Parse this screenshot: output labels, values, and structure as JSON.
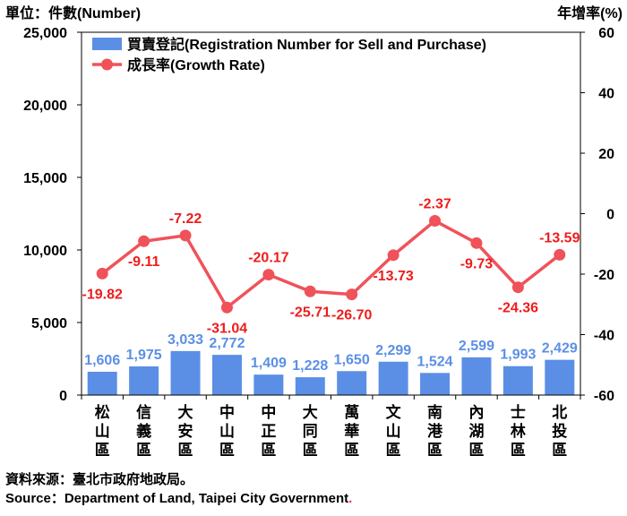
{
  "chart_data": {
    "type": "bar",
    "y_left_label": "單位：件數(Number)",
    "y_right_label": "年增率(%)",
    "ylim_left": [
      0,
      25000
    ],
    "ylim_right": [
      -60,
      60
    ],
    "left_ticks": [
      "25,000",
      "20,000",
      "15,000",
      "10,000",
      "5,000",
      "0"
    ],
    "left_tick_values": [
      25000,
      20000,
      15000,
      10000,
      5000,
      0
    ],
    "right_ticks": [
      "60",
      "40",
      "20",
      "0",
      "-20",
      "-40",
      "-60"
    ],
    "right_tick_values": [
      60,
      40,
      20,
      0,
      -20,
      -40,
      -60
    ],
    "categories": [
      "松山區",
      "信義區",
      "大安區",
      "中山區",
      "中正區",
      "大同區",
      "萬華區",
      "文山區",
      "南港區",
      "內湖區",
      "士林區",
      "北投區"
    ],
    "series": [
      {
        "name": "買賣登記(Registration Number for Sell and Purchase)",
        "kind": "bar",
        "axis": "left",
        "color": "#5b8fe6",
        "values": [
          1606,
          1975,
          3033,
          2772,
          1409,
          1228,
          1650,
          2299,
          1524,
          2599,
          1993,
          2429
        ],
        "labels": [
          "1,606",
          "1,975",
          "3,033",
          "2,772",
          "1,409",
          "1,228",
          "1,650",
          "2,299",
          "1,524",
          "2,599",
          "1,993",
          "2,429"
        ]
      },
      {
        "name": "成長率(Growth Rate)",
        "kind": "line",
        "axis": "right",
        "color": "#f0525a",
        "label_color": "#ee1c1c",
        "values": [
          -19.82,
          -9.11,
          -7.22,
          -31.04,
          -20.17,
          -25.71,
          -26.7,
          -13.73,
          -2.37,
          -9.73,
          -24.36,
          -13.59
        ],
        "labels": [
          "-19.82",
          "-9.11",
          "-7.22",
          "-31.04",
          "-20.17",
          "-25.71",
          "-26.70",
          "-13.73",
          "-2.37",
          "-9.73",
          "-24.36",
          "-13.59"
        ]
      }
    ],
    "legend_position": "top-left",
    "grid": false
  },
  "source": {
    "zh": "資料來源：臺北市政府地政局。",
    "en": "Source：Department of Land, Taipei City Government",
    "en_period": "."
  }
}
